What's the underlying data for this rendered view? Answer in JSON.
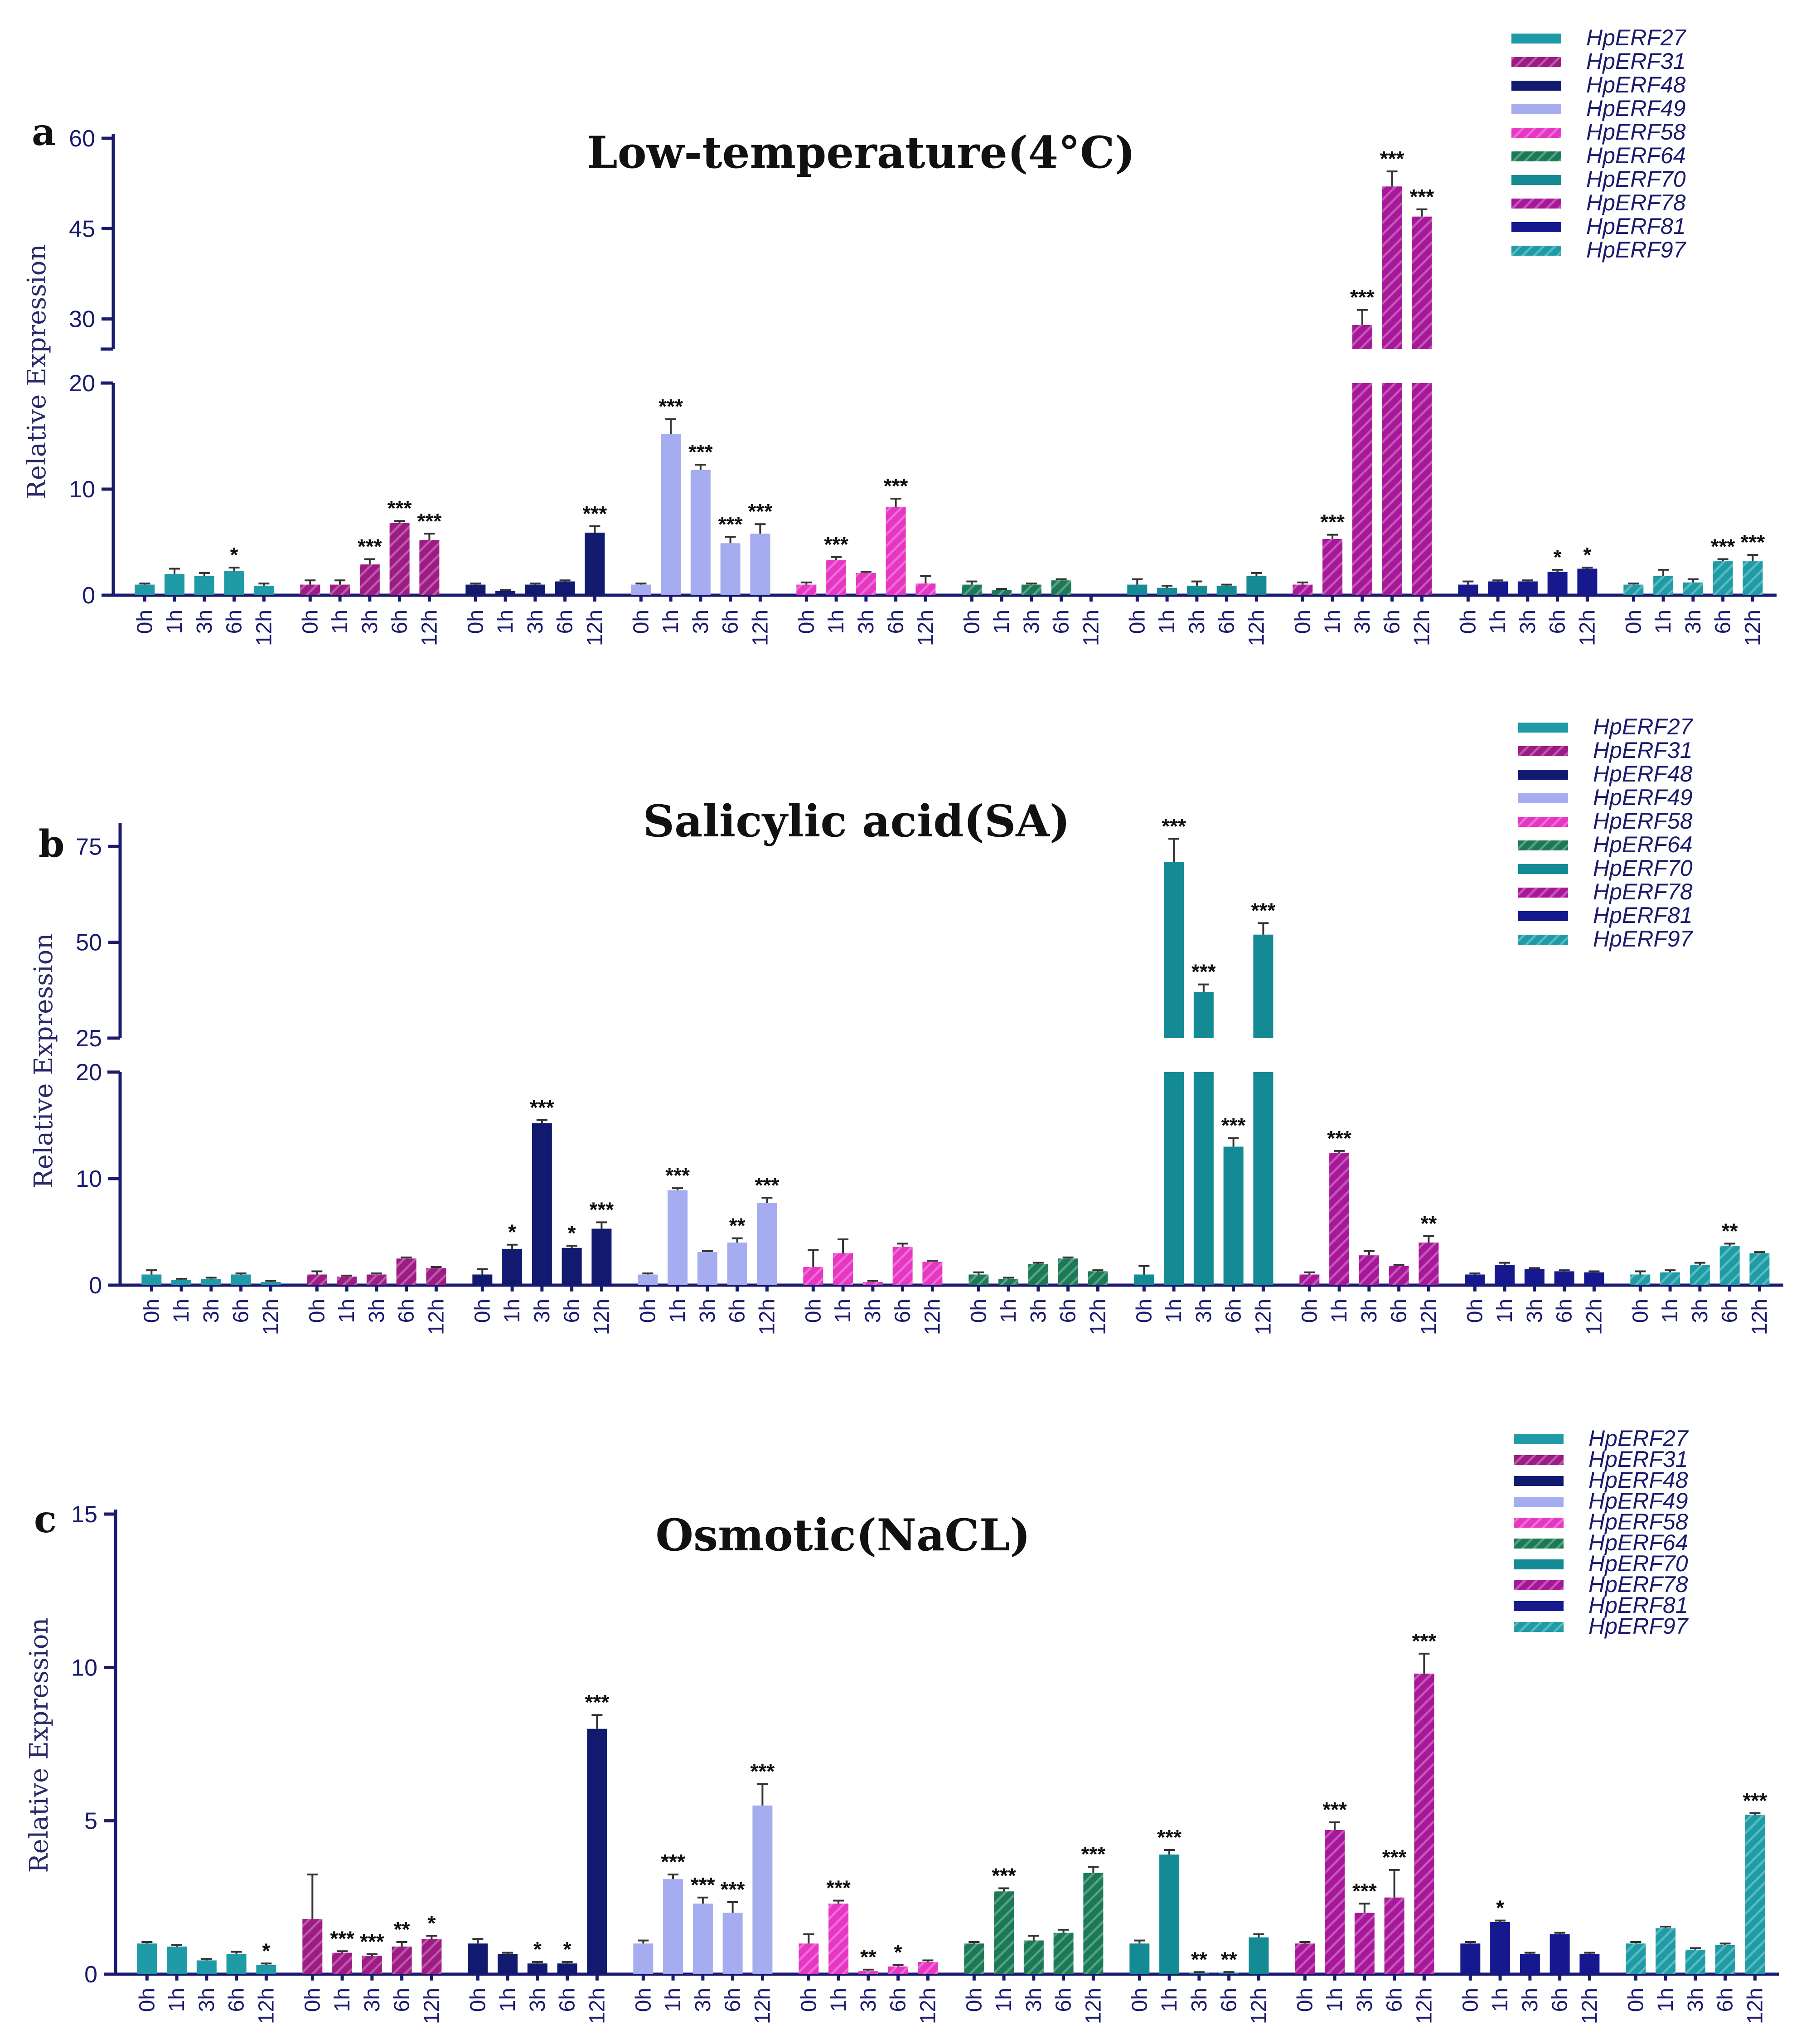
{
  "chart_data": [
    {
      "type": "bar",
      "panel_label": "a",
      "title": "Low-temperature(4°C)",
      "ylabel": "Relative Expression",
      "broken_axis": true,
      "ylim_lower": [
        0,
        20
      ],
      "ylim_upper": [
        25,
        60
      ],
      "yticks_lower": [
        "0",
        "10",
        "20"
      ],
      "yticks_upper": [
        "30",
        "45",
        "60"
      ],
      "time_points": [
        "0h",
        "1h",
        "3h",
        "6h",
        "12h"
      ],
      "legend": [
        "HpERF27",
        "HpERF31",
        "HpERF48",
        "HpERF49",
        "HpERF58",
        "HpERF64",
        "HpERF70",
        "HpERF78",
        "HpERF81",
        "HpERF97"
      ],
      "series": [
        {
          "name": "HpERF27",
          "values": [
            1.0,
            2.0,
            1.8,
            2.3,
            0.9
          ],
          "errors": [
            0.1,
            0.5,
            0.3,
            0.3,
            0.2
          ],
          "sig": [
            "",
            "",
            "",
            "*",
            ""
          ]
        },
        {
          "name": "HpERF31",
          "values": [
            1.0,
            1.0,
            2.9,
            6.8,
            5.2
          ],
          "errors": [
            0.4,
            0.4,
            0.5,
            0.2,
            0.6
          ],
          "sig": [
            "",
            "",
            "***",
            "***",
            "***"
          ]
        },
        {
          "name": "HpERF48",
          "values": [
            1.0,
            0.4,
            1.0,
            1.3,
            5.9
          ],
          "errors": [
            0.1,
            0.1,
            0.1,
            0.1,
            0.6
          ],
          "sig": [
            "",
            "",
            "",
            "",
            "***"
          ]
        },
        {
          "name": "HpERF49",
          "values": [
            1.0,
            15.2,
            11.8,
            4.9,
            5.8
          ],
          "errors": [
            0.1,
            1.4,
            0.5,
            0.6,
            0.9
          ],
          "sig": [
            "",
            "***",
            "***",
            "***",
            "***"
          ]
        },
        {
          "name": "HpERF58",
          "values": [
            1.0,
            3.3,
            2.1,
            8.3,
            1.1
          ],
          "errors": [
            0.2,
            0.3,
            0.1,
            0.8,
            0.7
          ],
          "sig": [
            "",
            "***",
            "",
            "***",
            ""
          ]
        },
        {
          "name": "HpERF64",
          "values": [
            1.0,
            0.5,
            1.0,
            1.4,
            0.0
          ],
          "errors": [
            0.3,
            0.1,
            0.1,
            0.1,
            0.0
          ],
          "sig": [
            "",
            "",
            "",
            "",
            ""
          ]
        },
        {
          "name": "HpERF70",
          "values": [
            1.0,
            0.7,
            0.9,
            0.9,
            1.8
          ],
          "errors": [
            0.5,
            0.2,
            0.4,
            0.1,
            0.3
          ],
          "sig": [
            "",
            "",
            "",
            "",
            ""
          ]
        },
        {
          "name": "HpERF78",
          "values": [
            1.0,
            5.3,
            29.0,
            52.0,
            47.0
          ],
          "errors": [
            0.2,
            0.4,
            2.5,
            2.5,
            1.2
          ],
          "sig": [
            "",
            "***",
            "***",
            "***",
            "***"
          ]
        },
        {
          "name": "HpERF81",
          "values": [
            1.0,
            1.3,
            1.3,
            2.2,
            2.5
          ],
          "errors": [
            0.3,
            0.1,
            0.1,
            0.2,
            0.1
          ],
          "sig": [
            "",
            "",
            "",
            "*",
            "*"
          ]
        },
        {
          "name": "HpERF97",
          "values": [
            1.0,
            1.8,
            1.2,
            3.2,
            3.2
          ],
          "errors": [
            0.1,
            0.6,
            0.3,
            0.2,
            0.6
          ],
          "sig": [
            "",
            "",
            "",
            "***",
            "***"
          ]
        }
      ]
    },
    {
      "type": "bar",
      "panel_label": "b",
      "title": "Salicylic acid(SA)",
      "ylabel": "Relative Expression",
      "broken_axis": true,
      "ylim_lower": [
        0,
        20
      ],
      "ylim_upper": [
        25,
        80
      ],
      "yticks_lower": [
        "0",
        "10",
        "20"
      ],
      "yticks_upper": [
        "25",
        "50",
        "75"
      ],
      "time_points": [
        "0h",
        "1h",
        "3h",
        "6h",
        "12h"
      ],
      "legend": [
        "HpERF27",
        "HpERF31",
        "HpERF48",
        "HpERF49",
        "HpERF58",
        "HpERF64",
        "HpERF70",
        "HpERF78",
        "HpERF81",
        "HpERF97"
      ],
      "series": [
        {
          "name": "HpERF27",
          "values": [
            1.0,
            0.5,
            0.6,
            1.0,
            0.3
          ],
          "errors": [
            0.4,
            0.1,
            0.1,
            0.1,
            0.1
          ],
          "sig": [
            "",
            "",
            "",
            "",
            ""
          ]
        },
        {
          "name": "HpERF31",
          "values": [
            1.0,
            0.8,
            1.0,
            2.5,
            1.6
          ],
          "errors": [
            0.3,
            0.1,
            0.1,
            0.1,
            0.1
          ],
          "sig": [
            "",
            "",
            "",
            "",
            ""
          ]
        },
        {
          "name": "HpERF48",
          "values": [
            1.0,
            3.4,
            15.2,
            3.5,
            5.3
          ],
          "errors": [
            0.5,
            0.4,
            0.3,
            0.2,
            0.6
          ],
          "sig": [
            "",
            "*",
            "***",
            "*",
            "***"
          ]
        },
        {
          "name": "HpERF49",
          "values": [
            1.0,
            8.9,
            3.1,
            4.0,
            7.7
          ],
          "errors": [
            0.1,
            0.2,
            0.1,
            0.4,
            0.5
          ],
          "sig": [
            "",
            "***",
            "",
            "**",
            "***"
          ]
        },
        {
          "name": "HpERF58",
          "values": [
            1.7,
            3.0,
            0.3,
            3.6,
            2.2
          ],
          "errors": [
            1.6,
            1.3,
            0.1,
            0.3,
            0.1
          ],
          "sig": [
            "",
            "",
            "",
            "",
            ""
          ]
        },
        {
          "name": "HpERF64",
          "values": [
            1.0,
            0.6,
            2.0,
            2.5,
            1.3
          ],
          "errors": [
            0.2,
            0.1,
            0.1,
            0.1,
            0.1
          ],
          "sig": [
            "",
            "",
            "",
            "",
            ""
          ]
        },
        {
          "name": "HpERF70",
          "values": [
            1.0,
            71.0,
            37.0,
            13.0,
            52.0
          ],
          "errors": [
            0.8,
            6.0,
            2.0,
            0.8,
            3.0
          ],
          "sig": [
            "",
            "***",
            "***",
            "***",
            "***"
          ]
        },
        {
          "name": "HpERF78",
          "values": [
            1.0,
            12.4,
            2.8,
            1.8,
            4.0
          ],
          "errors": [
            0.2,
            0.2,
            0.4,
            0.1,
            0.6
          ],
          "sig": [
            "",
            "***",
            "",
            "",
            "**"
          ]
        },
        {
          "name": "HpERF81",
          "values": [
            1.0,
            1.9,
            1.5,
            1.3,
            1.2
          ],
          "errors": [
            0.1,
            0.2,
            0.1,
            0.1,
            0.1
          ],
          "sig": [
            "",
            "",
            "",
            "",
            ""
          ]
        },
        {
          "name": "HpERF97",
          "values": [
            1.0,
            1.2,
            1.9,
            3.7,
            3.0
          ],
          "errors": [
            0.3,
            0.2,
            0.2,
            0.2,
            0.1
          ],
          "sig": [
            "",
            "",
            "",
            "**",
            ""
          ]
        }
      ]
    },
    {
      "type": "bar",
      "panel_label": "c",
      "title": "Osmotic(NaCL)",
      "ylabel": "Relative Expression",
      "broken_axis": false,
      "ylim": [
        0,
        15
      ],
      "yticks": [
        "0",
        "5",
        "10",
        "15"
      ],
      "time_points": [
        "0h",
        "1h",
        "3h",
        "6h",
        "12h"
      ],
      "legend": [
        "HpERF27",
        "HpERF31",
        "HpERF48",
        "HpERF49",
        "HpERF58",
        "HpERF64",
        "HpERF70",
        "HpERF78",
        "HpERF81",
        "HpERF97"
      ],
      "series": [
        {
          "name": "HpERF27",
          "values": [
            1.0,
            0.9,
            0.45,
            0.65,
            0.3
          ],
          "errors": [
            0.05,
            0.05,
            0.05,
            0.08,
            0.05
          ],
          "sig": [
            "",
            "",
            "",
            "",
            "*"
          ]
        },
        {
          "name": "HpERF31",
          "values": [
            1.8,
            0.7,
            0.6,
            0.9,
            1.15
          ],
          "errors": [
            1.45,
            0.05,
            0.05,
            0.15,
            0.1
          ],
          "sig": [
            "",
            "***",
            "***",
            "**",
            "*"
          ]
        },
        {
          "name": "HpERF48",
          "values": [
            1.0,
            0.65,
            0.35,
            0.35,
            8.0
          ],
          "errors": [
            0.15,
            0.05,
            0.05,
            0.05,
            0.45
          ],
          "sig": [
            "",
            "",
            "*",
            "*",
            "***"
          ]
        },
        {
          "name": "HpERF49",
          "values": [
            1.0,
            3.1,
            2.3,
            2.0,
            5.5
          ],
          "errors": [
            0.1,
            0.15,
            0.2,
            0.35,
            0.7
          ],
          "sig": [
            "",
            "***",
            "***",
            "***",
            "***"
          ]
        },
        {
          "name": "HpERF58",
          "values": [
            1.0,
            2.3,
            0.1,
            0.25,
            0.4
          ],
          "errors": [
            0.3,
            0.1,
            0.05,
            0.05,
            0.05
          ],
          "sig": [
            "",
            "***",
            "**",
            "*",
            ""
          ]
        },
        {
          "name": "HpERF64",
          "values": [
            1.0,
            2.7,
            1.1,
            1.35,
            3.3
          ],
          "errors": [
            0.05,
            0.1,
            0.15,
            0.1,
            0.2
          ],
          "sig": [
            "",
            "***",
            "",
            "",
            "***"
          ]
        },
        {
          "name": "HpERF70",
          "values": [
            1.0,
            3.9,
            0.05,
            0.05,
            1.2
          ],
          "errors": [
            0.1,
            0.15,
            0.02,
            0.02,
            0.1
          ],
          "sig": [
            "",
            "***",
            "**",
            "**",
            ""
          ]
        },
        {
          "name": "HpERF78",
          "values": [
            1.0,
            4.7,
            2.0,
            2.5,
            9.8
          ],
          "errors": [
            0.05,
            0.25,
            0.3,
            0.9,
            0.65
          ],
          "sig": [
            "",
            "***",
            "***",
            "***",
            "***"
          ]
        },
        {
          "name": "HpERF81",
          "values": [
            1.0,
            1.7,
            0.65,
            1.3,
            0.65
          ],
          "errors": [
            0.05,
            0.05,
            0.05,
            0.05,
            0.05
          ],
          "sig": [
            "",
            "*",
            "",
            "",
            ""
          ]
        },
        {
          "name": "HpERF97",
          "values": [
            1.0,
            1.5,
            0.8,
            0.95,
            5.2
          ],
          "errors": [
            0.05,
            0.05,
            0.05,
            0.05,
            0.05
          ],
          "sig": [
            "",
            "",
            "",
            "",
            "***"
          ]
        }
      ]
    }
  ],
  "colors": {
    "HpERF27": "#1f9aa7",
    "HpERF31": "#9e1a84",
    "HpERF48": "#111a6e",
    "HpERF49": "#a5acef",
    "HpERF58": "#e636c3",
    "HpERF64": "#1a7a55",
    "HpERF70": "#138a94",
    "HpERF78": "#a8179a",
    "HpERF81": "#16198e",
    "HpERF97": "#1d9ca6"
  },
  "patterned_series": [
    "HpERF31",
    "HpERF58",
    "HpERF64",
    "HpERF78",
    "HpERF97"
  ]
}
